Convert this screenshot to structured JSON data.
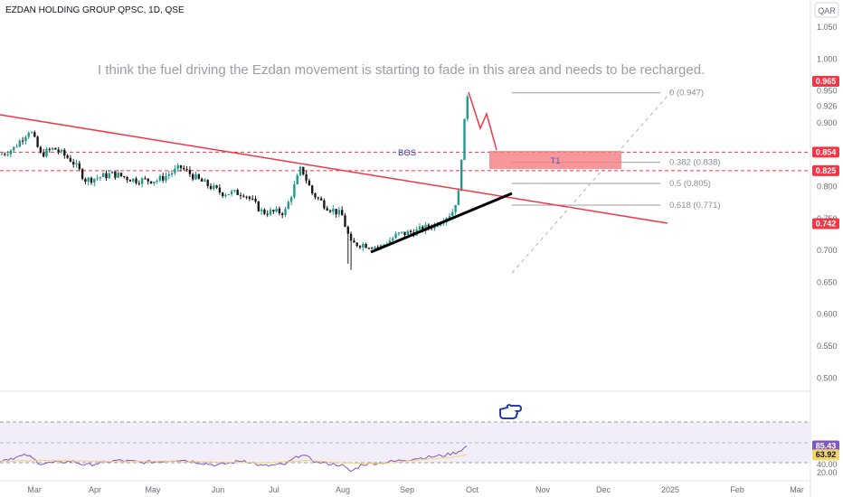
{
  "header": {
    "symbol": "EZDAN HOLDING GROUP QPSC, 1D, QSE",
    "currency": "QAR"
  },
  "annotation": "I think the fuel driving the Ezdan movement is starting to fade in this area and needs to be recharged.",
  "price_axis": {
    "ticks": [
      "1.050",
      "1.000",
      "0.950",
      "0.926",
      "0.900",
      "0.850",
      "0.800",
      "0.750",
      "0.700",
      "0.650",
      "0.600",
      "0.550",
      "0.500"
    ],
    "badges": [
      {
        "label": "0.965",
        "color": "#f23645"
      },
      {
        "label": "0.854",
        "color": "#f23645"
      },
      {
        "label": "0.825",
        "color": "#f23645"
      },
      {
        "label": "0.742",
        "color": "#f23645"
      }
    ]
  },
  "rsi_axis": {
    "ticks": [
      "60.00",
      "40.00",
      "20.00"
    ],
    "badges": [
      {
        "label": "85.43",
        "color": "#7e57c2"
      },
      {
        "label": "63.92",
        "color": "#f5d46a"
      }
    ]
  },
  "time_axis": [
    "Mar",
    "Apr",
    "May",
    "Jun",
    "Jul",
    "Aug",
    "Sep",
    "Oct",
    "Nov",
    "Dec",
    "2025",
    "Feb",
    "Mar"
  ],
  "drawings": {
    "bos_label": "BOS",
    "zone_label": "T1",
    "fib_levels": [
      {
        "label": "0 (0.947)",
        "price": 0.947
      },
      {
        "label": "0.382 (0.838)",
        "price": 0.838
      },
      {
        "label": "0.5 (0.805)",
        "price": 0.805
      },
      {
        "label": "0.618 (0.771)",
        "price": 0.771
      }
    ],
    "hand_icon": "pointing-hand-icon"
  },
  "colors": {
    "up": "#22998a",
    "down": "#1a1a1a",
    "trendline": "#f23645",
    "support": "#000000",
    "zone": "#f77c80",
    "rsi": "#7e57c2",
    "rsi_ma": "#f5d46a"
  },
  "chart_data": [
    {
      "type": "candlestick",
      "title": "EZDAN HOLDING GROUP QPSC, 1D, QSE",
      "x_range": [
        "Mar",
        "Mar"
      ],
      "ylim": [
        0.5,
        1.06
      ],
      "key_prices": {
        "start": 0.85,
        "march_high": 0.89,
        "july_high": 0.83,
        "august_low": 0.661,
        "september_close": 0.76,
        "late_september_high": 0.947,
        "last": 0.965
      },
      "levels": [
        0.965,
        0.854,
        0.825,
        0.742
      ],
      "series": [
        {
          "name": "RSI",
          "ylim": [
            0,
            100
          ],
          "last": 85.43
        },
        {
          "name": "RSI MA",
          "last": 63.92
        }
      ]
    }
  ]
}
